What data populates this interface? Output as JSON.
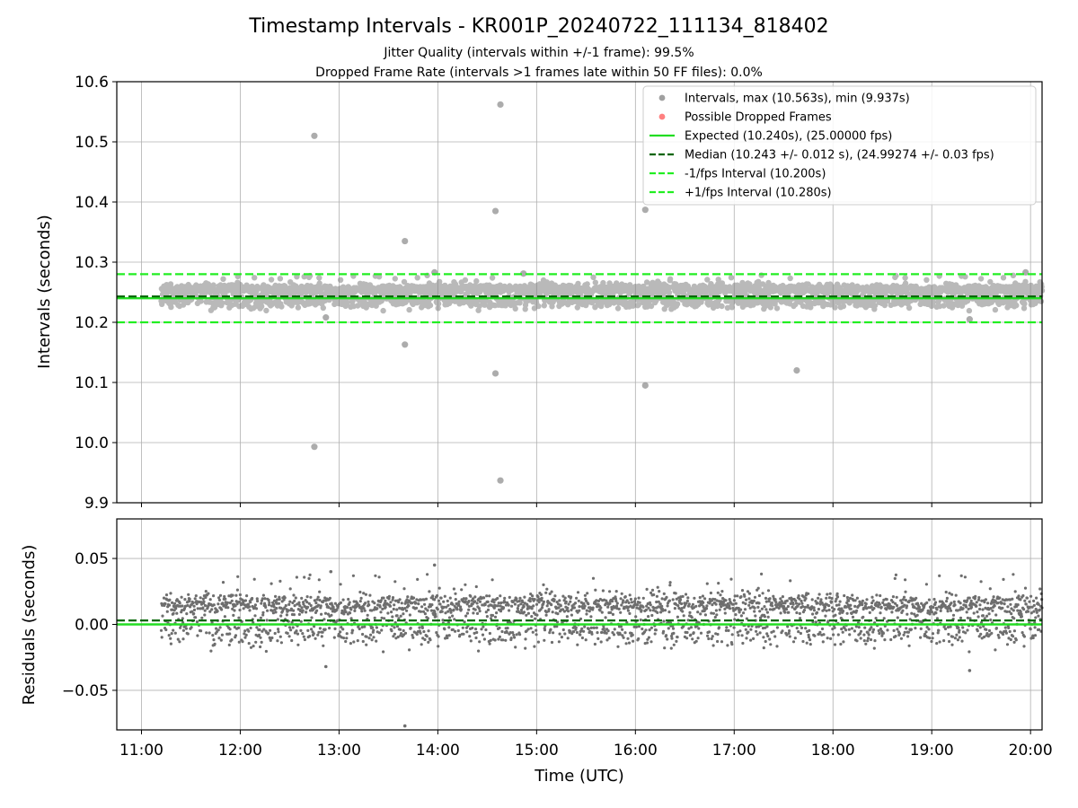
{
  "chart_data": [
    {
      "type": "scatter",
      "title": "Timestamp Intervals - KR001P_20240722_111134_818402",
      "subtitle_lines": [
        "Jitter Quality (intervals within +/-1 frame): 99.5%",
        "Dropped Frame Rate (intervals >1 frames late within 50 FF files): 0.0%"
      ],
      "ylabel": "Intervals (seconds)",
      "xlim": [
        "10:45",
        "20:07"
      ],
      "ylim": [
        9.9,
        10.6
      ],
      "y_ticks": [
        "9.9",
        "10.0",
        "10.1",
        "10.2",
        "10.3",
        "10.4",
        "10.5",
        "10.6"
      ],
      "grid": true,
      "legend_position": "upper-right",
      "legend": [
        {
          "label": "Intervals, max (10.563s), min (9.937s)",
          "kind": "marker",
          "color": "#808080"
        },
        {
          "label": "Possible Dropped Frames",
          "kind": "marker",
          "color": "#ff5555"
        },
        {
          "label": "Expected (10.240s), (25.00000 fps)",
          "kind": "solid",
          "color": "#22dd22"
        },
        {
          "label": "Median (10.243 +/- 0.012 s), (24.99274 +/- 0.03 fps)",
          "kind": "dashed",
          "color": "#006400"
        },
        {
          "label": "-1/fps Interval (10.200s)",
          "kind": "dashed",
          "color": "#22ee22"
        },
        {
          "label": "+1/fps Interval (10.280s)",
          "kind": "dashed",
          "color": "#22ee22"
        }
      ],
      "reference_lines": {
        "expected": 10.24,
        "median": 10.243,
        "minus_one_frame": 10.2,
        "plus_one_frame": 10.28
      },
      "series_time_range": [
        "11:12",
        "20:07"
      ],
      "band_center": 10.255,
      "band_spread": 0.012,
      "outliers": [
        {
          "time": "12:45",
          "value": 10.51
        },
        {
          "time": "12:45",
          "value": 9.993
        },
        {
          "time": "13:40",
          "value": 10.335
        },
        {
          "time": "13:40",
          "value": 10.163
        },
        {
          "time": "14:35",
          "value": 10.385
        },
        {
          "time": "14:35",
          "value": 10.115
        },
        {
          "time": "14:38",
          "value": 10.562
        },
        {
          "time": "14:38",
          "value": 9.937
        },
        {
          "time": "16:06",
          "value": 10.387
        },
        {
          "time": "16:06",
          "value": 10.095
        },
        {
          "time": "17:38",
          "value": 10.12
        },
        {
          "time": "12:52",
          "value": 10.208
        },
        {
          "time": "19:23",
          "value": 10.205
        },
        {
          "time": "13:58",
          "value": 10.283
        },
        {
          "time": "14:52",
          "value": 10.281
        },
        {
          "time": "19:57",
          "value": 10.283
        }
      ]
    },
    {
      "type": "scatter",
      "ylabel": "Residuals (seconds)",
      "xlabel": "Time (UTC)",
      "xlim": [
        "10:45",
        "20:07"
      ],
      "ylim": [
        -0.08,
        0.08
      ],
      "y_ticks": [
        "−0.05",
        "0.00",
        "0.05"
      ],
      "x_ticks": [
        "11:00",
        "12:00",
        "13:00",
        "14:00",
        "15:00",
        "16:00",
        "17:00",
        "18:00",
        "19:00",
        "20:00"
      ],
      "grid": true,
      "reference_lines": {
        "expected": 0.0,
        "median": 0.003
      },
      "outliers": [
        {
          "time": "12:52",
          "value": -0.032
        },
        {
          "time": "13:40",
          "value": -0.077
        },
        {
          "time": "13:58",
          "value": 0.045
        },
        {
          "time": "12:55",
          "value": 0.04
        },
        {
          "time": "19:23",
          "value": -0.035
        }
      ]
    }
  ]
}
